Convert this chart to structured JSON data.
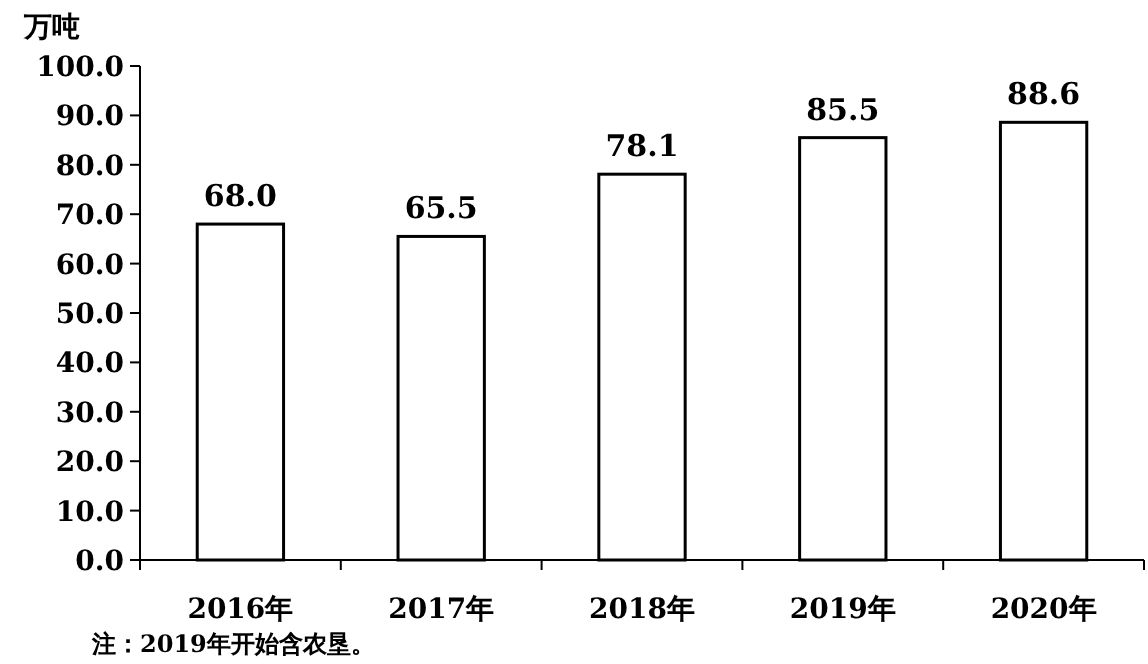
{
  "chart_data": {
    "type": "bar",
    "ylabel": "万吨",
    "categories": [
      "2016年",
      "2017年",
      "2018年",
      "2019年",
      "2020年"
    ],
    "values": [
      68.0,
      65.5,
      78.1,
      85.5,
      88.6
    ],
    "value_labels": [
      "68.0",
      "65.5",
      "78.1",
      "85.5",
      "88.6"
    ],
    "color": "#ffffff",
    "ylim": [
      0,
      100
    ],
    "yticks": [
      {
        "value": 0,
        "label": "0.0"
      },
      {
        "value": 10,
        "label": "10.0"
      },
      {
        "value": 20,
        "label": "20.0"
      },
      {
        "value": 30,
        "label": "30.0"
      },
      {
        "value": 40,
        "label": "40.0"
      },
      {
        "value": 50,
        "label": "50.0"
      },
      {
        "value": 60,
        "label": "60.0"
      },
      {
        "value": 70,
        "label": "70.0"
      },
      {
        "value": 80,
        "label": "80.0"
      },
      {
        "value": 90,
        "label": "90.0"
      },
      {
        "value": 100,
        "label": "100.0"
      }
    ],
    "annotations": [
      "注：2019年开始含农垦。"
    ]
  }
}
